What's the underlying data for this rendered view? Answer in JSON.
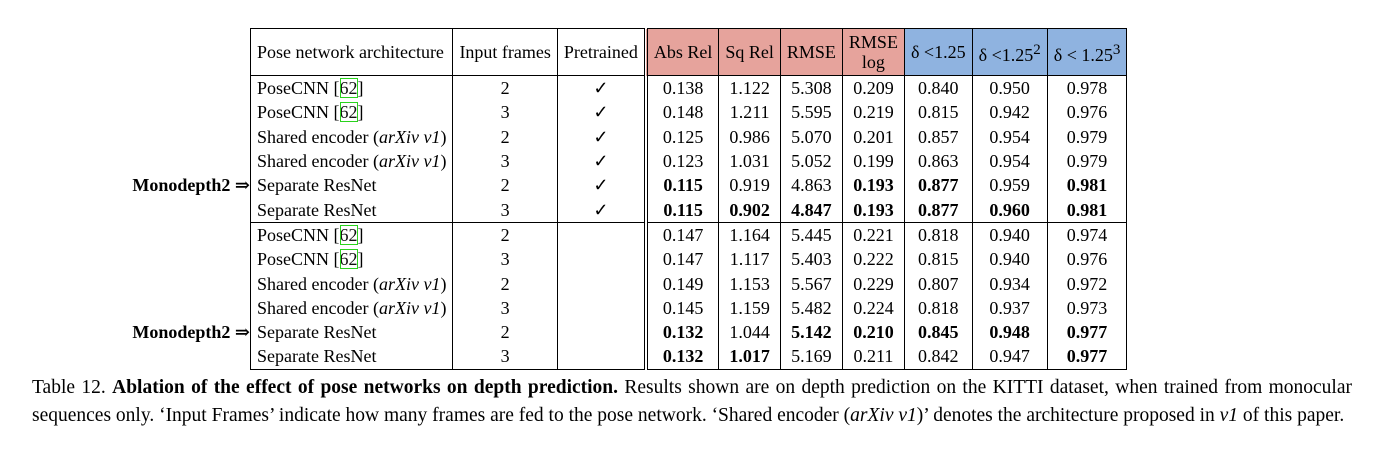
{
  "headers": {
    "arch": "Pose network architecture",
    "frames": "Input frames",
    "pretrained": "Pretrained",
    "abs_rel": "Abs Rel",
    "sq_rel": "Sq Rel",
    "rmse": "RMSE",
    "rmse_log_1": "RMSE",
    "rmse_log_2": "log",
    "d1": "δ <1.25",
    "d2_base": "δ <1.25",
    "d2_sup": "2",
    "d3_base": "δ < 1.25",
    "d3_sup": "3"
  },
  "colors": {
    "error_header": "#e6a39c",
    "accuracy_header": "#8fb3e0",
    "citation_box": "#2ad21d"
  },
  "monodepth_label": "Monodepth2 ⇒",
  "rows": [
    {
      "arch": "PoseCNN [",
      "ref": "62",
      "arch_tail": "]",
      "arch_it": "",
      "arch_close": "",
      "frames": "2",
      "pre": "✓",
      "abs": "0.138",
      "sq": "1.122",
      "rmse": "5.308",
      "rlog": "0.209",
      "d1": "0.840",
      "d2": "0.950",
      "d3": "0.978",
      "bold": []
    },
    {
      "arch": "PoseCNN [",
      "ref": "62",
      "arch_tail": "]",
      "arch_it": "",
      "arch_close": "",
      "frames": "3",
      "pre": "✓",
      "abs": "0.148",
      "sq": "1.211",
      "rmse": "5.595",
      "rlog": "0.219",
      "d1": "0.815",
      "d2": "0.942",
      "d3": "0.976",
      "bold": []
    },
    {
      "arch": "Shared encoder (",
      "ref": "",
      "arch_tail": "",
      "arch_it": "arXiv v1",
      "arch_close": ")",
      "frames": "2",
      "pre": "✓",
      "abs": "0.125",
      "sq": "0.986",
      "rmse": "5.070",
      "rlog": "0.201",
      "d1": "0.857",
      "d2": "0.954",
      "d3": "0.979",
      "bold": []
    },
    {
      "arch": "Shared encoder (",
      "ref": "",
      "arch_tail": "",
      "arch_it": "arXiv v1",
      "arch_close": ")",
      "frames": "3",
      "pre": "✓",
      "abs": "0.123",
      "sq": "1.031",
      "rmse": "5.052",
      "rlog": "0.199",
      "d1": "0.863",
      "d2": "0.954",
      "d3": "0.979",
      "bold": []
    },
    {
      "arch": "Separate ResNet",
      "ref": "",
      "arch_tail": "",
      "arch_it": "",
      "arch_close": "",
      "frames": "2",
      "pre": "✓",
      "abs": "0.115",
      "sq": "0.919",
      "rmse": "4.863",
      "rlog": "0.193",
      "d1": "0.877",
      "d2": "0.959",
      "d3": "0.981",
      "bold": [
        "abs",
        "rlog",
        "d1",
        "d3"
      ],
      "mono": true
    },
    {
      "arch": "Separate ResNet",
      "ref": "",
      "arch_tail": "",
      "arch_it": "",
      "arch_close": "",
      "frames": "3",
      "pre": "✓",
      "abs": "0.115",
      "sq": "0.902",
      "rmse": "4.847",
      "rlog": "0.193",
      "d1": "0.877",
      "d2": "0.960",
      "d3": "0.981",
      "bold": [
        "abs",
        "sq",
        "rmse",
        "rlog",
        "d1",
        "d2",
        "d3"
      ]
    },
    {
      "arch": "PoseCNN [",
      "ref": "62",
      "arch_tail": "]",
      "arch_it": "",
      "arch_close": "",
      "frames": "2",
      "pre": "",
      "abs": "0.147",
      "sq": "1.164",
      "rmse": "5.445",
      "rlog": "0.221",
      "d1": "0.818",
      "d2": "0.940",
      "d3": "0.974",
      "bold": [],
      "sep": true
    },
    {
      "arch": "PoseCNN [",
      "ref": "62",
      "arch_tail": "]",
      "arch_it": "",
      "arch_close": "",
      "frames": "3",
      "pre": "",
      "abs": "0.147",
      "sq": "1.117",
      "rmse": "5.403",
      "rlog": "0.222",
      "d1": "0.815",
      "d2": "0.940",
      "d3": "0.976",
      "bold": []
    },
    {
      "arch": "Shared encoder (",
      "ref": "",
      "arch_tail": "",
      "arch_it": "arXiv v1",
      "arch_close": ")",
      "frames": "2",
      "pre": "",
      "abs": "0.149",
      "sq": "1.153",
      "rmse": "5.567",
      "rlog": "0.229",
      "d1": "0.807",
      "d2": "0.934",
      "d3": "0.972",
      "bold": []
    },
    {
      "arch": "Shared encoder (",
      "ref": "",
      "arch_tail": "",
      "arch_it": "arXiv v1",
      "arch_close": ")",
      "frames": "3",
      "pre": "",
      "abs": "0.145",
      "sq": "1.159",
      "rmse": "5.482",
      "rlog": "0.224",
      "d1": "0.818",
      "d2": "0.937",
      "d3": "0.973",
      "bold": []
    },
    {
      "arch": "Separate ResNet",
      "ref": "",
      "arch_tail": "",
      "arch_it": "",
      "arch_close": "",
      "frames": "2",
      "pre": "",
      "abs": "0.132",
      "sq": "1.044",
      "rmse": "5.142",
      "rlog": "0.210",
      "d1": "0.845",
      "d2": "0.948",
      "d3": "0.977",
      "bold": [
        "abs",
        "rmse",
        "rlog",
        "d1",
        "d2",
        "d3"
      ],
      "mono": true
    },
    {
      "arch": "Separate ResNet",
      "ref": "",
      "arch_tail": "",
      "arch_it": "",
      "arch_close": "",
      "frames": "3",
      "pre": "",
      "abs": "0.132",
      "sq": "1.017",
      "rmse": "5.169",
      "rlog": "0.211",
      "d1": "0.842",
      "d2": "0.947",
      "d3": "0.977",
      "bold": [
        "abs",
        "sq",
        "d3"
      ],
      "last": true
    }
  ],
  "caption": {
    "label": "Table 12.",
    "title": "Ablation of the effect of pose networks on depth prediction.",
    "text1": "Results shown are on depth prediction on the KITTI dataset, when trained from monocular sequences only. ‘Input Frames’ indicate how many frames are fed to the pose network. ‘Shared encoder (",
    "it1": "arXiv v1",
    "text2": ")’ denotes the architecture proposed in ",
    "it2": "v1",
    "text3": " of this paper."
  }
}
